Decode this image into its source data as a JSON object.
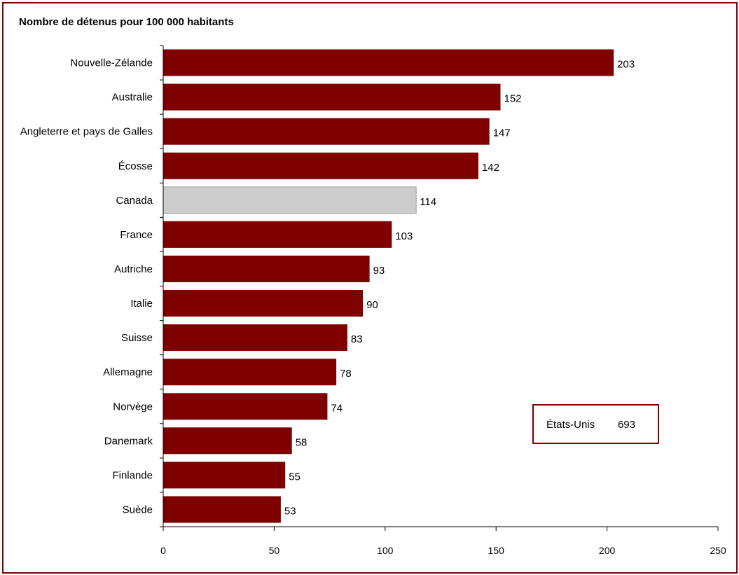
{
  "chart_data": {
    "type": "bar",
    "orientation": "horizontal",
    "title": "Nombre de détenus pour 100 000 habitants",
    "categories": [
      "Nouvelle-Zélande",
      "Australie",
      "Angleterre et pays de Galles",
      "Écosse",
      "Canada",
      "France",
      "Autriche",
      "Italie",
      "Suisse",
      "Allemagne",
      "Norvège",
      "Danemark",
      "Finlande",
      "Suède"
    ],
    "values": [
      203,
      152,
      147,
      142,
      114,
      103,
      93,
      90,
      83,
      78,
      74,
      58,
      55,
      53
    ],
    "highlight_category": "Canada",
    "xlim": [
      0,
      250
    ],
    "xticks": [
      0,
      50,
      100,
      150,
      200,
      250
    ],
    "xlabel": "",
    "ylabel": "",
    "grid": false,
    "colors": {
      "bar": "#7f0000",
      "highlight": "#cccccc",
      "frame": "#7f0000"
    },
    "annotation": {
      "label": "États-Unis",
      "value": "693"
    }
  }
}
